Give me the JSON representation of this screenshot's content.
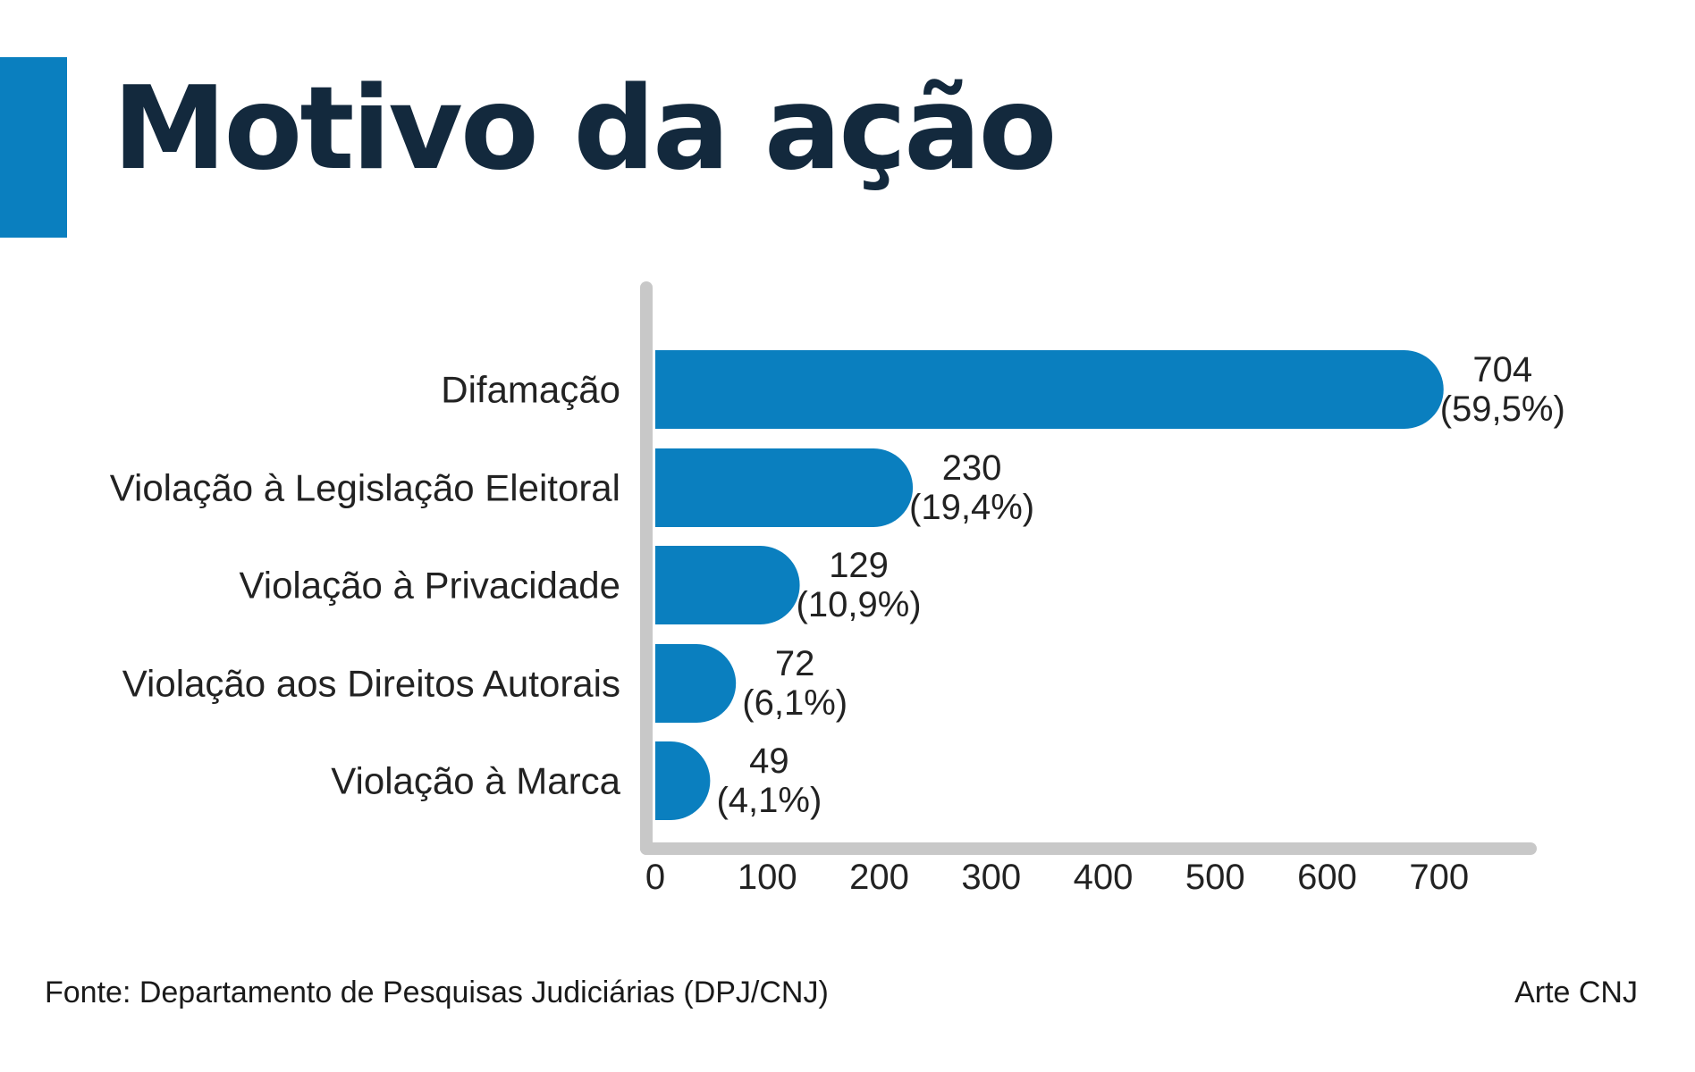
{
  "header": {
    "title": "Motivo da ação"
  },
  "chart_data": {
    "type": "bar",
    "orientation": "horizontal",
    "title": "Motivo da ação",
    "categories": [
      "Difamação",
      "Violação à Legislação Eleitoral",
      "Violação à Privacidade",
      "Violação aos Direitos Autorais",
      "Violação à Marca"
    ],
    "values": [
      704,
      230,
      129,
      72,
      49
    ],
    "value_labels": [
      "704",
      "230",
      "129",
      "72",
      "49"
    ],
    "percent_labels": [
      "(59,5%)",
      "(19,4%)",
      "(10,9%)",
      "(6,1%)",
      "(4,1%)"
    ],
    "xlim": [
      0,
      700
    ],
    "xticks": [
      "0",
      "100",
      "200",
      "300",
      "400",
      "500",
      "600",
      "700"
    ],
    "grid": false,
    "bar_color": "#0a7fbf",
    "axis_color": "#c8c8c8"
  },
  "footer": {
    "source": "Fonte: Departamento de Pesquisas Judiciárias (DPJ/CNJ)",
    "credit": "Arte CNJ"
  },
  "colors": {
    "accent": "#0a7fbf",
    "title": "#13293d",
    "axis": "#c8c8c8"
  }
}
